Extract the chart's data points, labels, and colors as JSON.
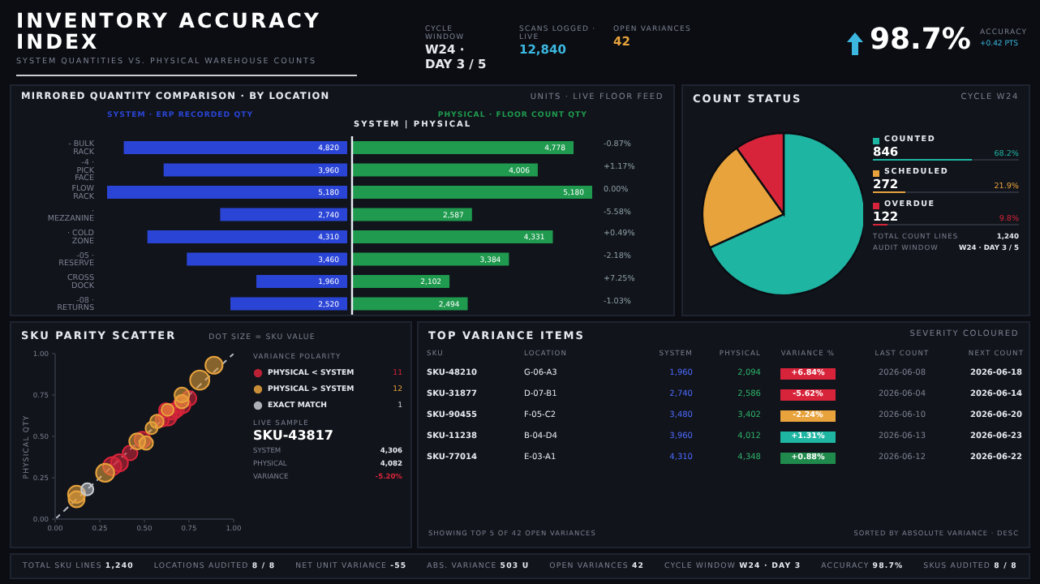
{
  "chart_data": [
    {
      "type": "other",
      "title": "INVENTORY ACCURACY INDEX",
      "subtitle": "SYSTEM QUANTITIES VS. PHYSICAL WAREHOUSE COUNTS",
      "annotations": [
        "CYCLE WINDOW",
        "W24 · DAY 3 / 5",
        "SCANS LOGGED · LIVE",
        "12,840",
        "OPEN VARIANCES",
        "42",
        "ACCURACY",
        "98.7%",
        "+0.42 PTS"
      ]
    },
    {
      "type": "bar",
      "orientation": "horizontal",
      "tick_labels": "y",
      "title": "MIRRORED QUANTITY COMPARISON · BY LOCATION",
      "categories": [
        "- BULK RACK",
        "-4 · PICK FACE",
        "FLOW RACK",
        "· MEZZANINE",
        "· COLD ZONE",
        "-05 · RESERVE",
        "CROSS DOCK",
        "-08 · RETURNS"
      ],
      "series": [
        {
          "name": "SYSTEM · ERP RECORDED QTY",
          "color": "#2a45d6",
          "values": [
            4820,
            3960,
            5180,
            2740,
            4310,
            3460,
            1960,
            2520
          ],
          "value_labels": [
            "4,820",
            "3,960",
            "5,180",
            "2,740",
            "4,310",
            "3,460",
            "1,960",
            "2,520"
          ]
        }
      ]
    },
    {
      "type": "bar",
      "orientation": "horizontal",
      "tick_labels": false,
      "subtitle": "UNITS · LIVE FLOOR FEED",
      "categories": [
        null,
        null,
        null,
        null,
        null,
        null,
        null,
        null
      ],
      "series": [
        {
          "name": "PHYSICAL · FLOOR COUNT QTY",
          "color": "#1f9a4e",
          "values": [
            4778,
            4006,
            5180,
            2587,
            4331,
            3384,
            2102,
            2494
          ],
          "value_labels": [
            "4,778",
            "4,006",
            "5,180",
            "2,587",
            "4,331",
            "3,384",
            "2,102",
            "2,494"
          ]
        }
      ],
      "annotations": [
        "SYSTEM | PHYSICAL",
        "-0.87%",
        "+1.17%",
        "0.00%",
        "-5.58%",
        "+0.49%",
        "-2.18%",
        "+7.25%",
        "-1.03%"
      ]
    },
    {
      "type": "pie",
      "title": "COUNT STATUS",
      "subtitle": "CYCLE W24",
      "categories": [
        "COUNTED",
        "SCHEDULED",
        "OVERDUE"
      ],
      "values": [
        846,
        272,
        122
      ],
      "colors": [
        "#1fb5a3",
        "#e8a33c",
        "#d8243a"
      ],
      "data_labels": true,
      "legend": "right",
      "annotations": [
        "68.2%",
        "21.9%",
        "9.8%",
        "TOTAL COUNT LINES",
        "1,240",
        "AUDIT WINDOW",
        "W24 · DAY 3 / 5"
      ]
    },
    {
      "type": "bubble",
      "xlim": [
        0,
        1
      ],
      "ylim": [
        0,
        1
      ],
      "xticks": [
        {
          "value": 0,
          "label": "0.00"
        },
        {
          "value": 0.25,
          "label": "0.25"
        },
        {
          "value": 0.5,
          "label": "0.50"
        },
        {
          "value": 0.75,
          "label": "0.75"
        },
        {
          "value": 1,
          "label": "1.00"
        }
      ],
      "yticks": [
        {
          "value": 0,
          "label": "0.00"
        },
        {
          "value": 0.25,
          "label": "0.25"
        },
        {
          "value": 0.5,
          "label": "0.50"
        },
        {
          "value": 0.75,
          "label": "0.75"
        },
        {
          "value": 1,
          "label": "1.00"
        }
      ],
      "title": "SKU PARITY SCATTER",
      "subtitle": "DOT SIZE = SKU VALUE",
      "ylabel": "PHYSICAL QTY",
      "legend_title": "VARIANCE POLARITY",
      "legend": "right",
      "series": [
        {
          "name": "PHYSICAL < SYSTEM",
          "color": "#d8243a",
          "marker": "circle",
          "x": [
            0.75,
            0.71,
            0.66,
            0.63,
            0.6,
            0.68,
            0.49,
            0.42,
            0.36,
            0.32,
            0.62
          ],
          "values": [
            0.73,
            0.69,
            0.65,
            0.62,
            0.6,
            0.66,
            0.48,
            0.4,
            0.34,
            0.32,
            0.66
          ],
          "sizes": [
            0.6,
            0.8,
            0.7,
            0.9,
            0.5,
            0.6,
            0.7,
            0.6,
            0.8,
            0.9,
            0.5
          ]
        },
        {
          "name": "PHYSICAL > SYSTEM",
          "color": "#e8a33c",
          "marker": "circle",
          "x": [
            0.89,
            0.81,
            0.71,
            0.57,
            0.54,
            0.46,
            0.28,
            0.12,
            0.12,
            0.71,
            0.63,
            0.51
          ],
          "values": [
            0.93,
            0.84,
            0.75,
            0.59,
            0.55,
            0.47,
            0.28,
            0.15,
            0.12,
            0.71,
            0.66,
            0.46
          ],
          "sizes": [
            0.8,
            1,
            0.6,
            0.5,
            0.4,
            0.7,
            0.9,
            0.8,
            0.7,
            0.5,
            0.4,
            0.5
          ]
        },
        {
          "name": "EXACT MATCH",
          "color": "#c9ccd3",
          "marker": "circle",
          "x": [
            0.18
          ],
          "values": [
            0.18
          ],
          "sizes": [
            0.4
          ]
        },
        {
          "type": "line",
          "color": "#b8bcc6",
          "line_style": "dashed",
          "x": [
            0,
            1
          ],
          "values": [
            0,
            1
          ]
        }
      ],
      "annotations": [
        "11",
        "12",
        "1",
        "LIVE SAMPLE",
        "SKU-43817",
        "SYSTEM",
        "4,306",
        "PHYSICAL",
        "4,082",
        "VARIANCE",
        "-5.20%"
      ]
    },
    {
      "type": "other",
      "title": "TOP VARIANCE ITEMS",
      "subtitle": "SEVERITY COLOURED",
      "categories": [
        "SKU",
        "LOCATION",
        "SYSTEM",
        "PHYSICAL",
        "VARIANCE %",
        "LAST COUNT",
        "NEXT COUNT"
      ],
      "annotations": [
        "SKU-48210",
        "G-06-A3",
        "1,960",
        "2,094",
        "+6.84%",
        "2026-06-08",
        "2026-06-18",
        "SKU-31877",
        "D-07-B1",
        "2,740",
        "2,586",
        "-5.62%",
        "2026-06-04",
        "2026-06-14",
        "SKU-90455",
        "F-05-C2",
        "3,480",
        "3,402",
        "-2.24%",
        "2026-06-10",
        "2026-06-20",
        "SKU-11238",
        "B-04-D4",
        "3,960",
        "4,012",
        "+1.31%",
        "2026-06-13",
        "2026-06-23",
        "SKU-77014",
        "E-03-A1",
        "4,310",
        "4,348",
        "+0.88%",
        "2026-06-12",
        "2026-06-22",
        "SHOWING TOP 5 OF 42 OPEN VARIANCES",
        "SORTED BY ABSOLUTE VARIANCE · DESC"
      ]
    },
    {
      "type": "other",
      "annotations": [
        "TOTAL SKU LINES",
        "1,240",
        "LOCATIONS AUDITED",
        "8 / 8",
        "NET UNIT VARIANCE",
        "-55",
        "ABS. VARIANCE",
        "503 U",
        "OPEN VARIANCES",
        "42",
        "CYCLE WINDOW",
        "W24 · DAY 3",
        "ACCURACY",
        "98.7%",
        "SKUS AUDITED",
        "8 / 8"
      ]
    }
  ]
}
